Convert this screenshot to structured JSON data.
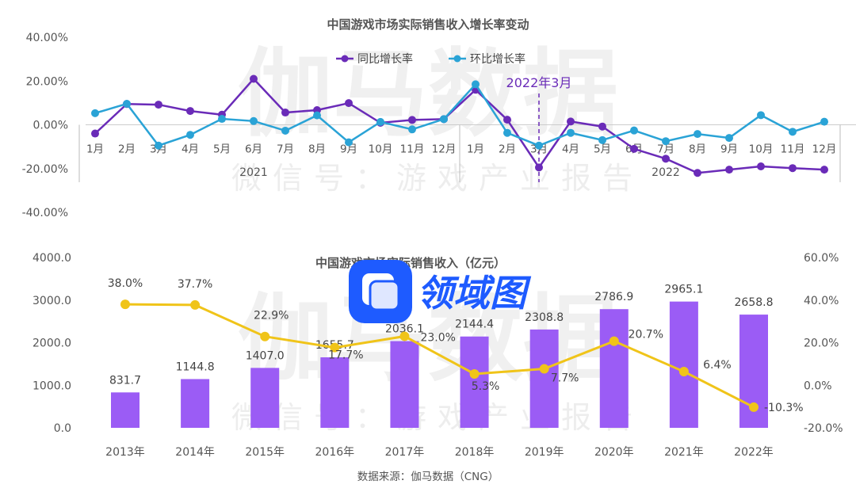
{
  "colors": {
    "yoy": "#6a2bb8",
    "mom": "#2aa3d6",
    "bar": "#9b5cf5",
    "growth_line": "#f0c419",
    "logo": "#1e5bff",
    "text": "#555555"
  },
  "watermark": {
    "main": "伽马数据",
    "sub": "微信号：游戏产业报告"
  },
  "logo": {
    "text": "领域图",
    "icon_name": "app-badge-icon"
  },
  "source": "数据来源：伽马数据（CNG）",
  "chart_data": [
    {
      "type": "line",
      "title": "中国游戏市场实际销售收入增长率变动",
      "ylim": [
        -40,
        40
      ],
      "yticks": [
        "40.00%",
        "20.00%",
        "0.00%",
        "-20.00%",
        "-40.00%"
      ],
      "ytick_values": [
        40,
        20,
        0,
        -20,
        -40
      ],
      "categories": [
        "1月",
        "2月",
        "3月",
        "4月",
        "5月",
        "6月",
        "7月",
        "8月",
        "9月",
        "10月",
        "11月",
        "12月",
        "1月",
        "2月",
        "3月",
        "4月",
        "5月",
        "6月",
        "7月",
        "8月",
        "9月",
        "10月",
        "11月",
        "12月"
      ],
      "year_labels": [
        "2021",
        "2022"
      ],
      "annotation": {
        "text": "2022年3月",
        "index": 14
      },
      "series": [
        {
          "name": "同比增长率",
          "values": [
            -4,
            9.5,
            9.2,
            6.3,
            4.6,
            21,
            5.6,
            6.7,
            9.9,
            0.9,
            2.2,
            2.6,
            16,
            2.3,
            -19.5,
            1.5,
            -0.8,
            -11,
            -15.5,
            -22,
            -20.5,
            -19,
            -19.8,
            -20.5
          ]
        },
        {
          "name": "环比增长率",
          "values": [
            5.3,
            9.6,
            -9.5,
            -4.6,
            2.7,
            1.7,
            -2.7,
            4.3,
            -8,
            1.3,
            -2.1,
            2.6,
            18.5,
            -3.7,
            -9.5,
            -3.7,
            -7,
            -2.6,
            -7.5,
            -4.2,
            -6,
            4.4,
            -3.2,
            1.4
          ]
        }
      ]
    },
    {
      "type": "bar",
      "title": "中国游戏市场实际销售收入（亿元）",
      "categories": [
        "2013年",
        "2014年",
        "2015年",
        "2016年",
        "2017年",
        "2018年",
        "2019年",
        "2020年",
        "2021年",
        "2022年"
      ],
      "ylim": [
        0,
        4000
      ],
      "yticks_left": [
        "4000.0",
        "3000.0",
        "2000.0",
        "1000.0",
        "0.0"
      ],
      "ytick_left_values": [
        4000,
        3000,
        2000,
        1000,
        0
      ],
      "ylim_right": [
        -20,
        60
      ],
      "yticks_right": [
        "60.0%",
        "40.0%",
        "20.0%",
        "0.0%",
        "-20.0%"
      ],
      "ytick_right_values": [
        60,
        40,
        20,
        0,
        -20
      ],
      "series": [
        {
          "name": "实际销售收入",
          "values": [
            831.7,
            1144.8,
            1407.0,
            1655.7,
            2036.1,
            2144.4,
            2308.8,
            2786.9,
            2965.1,
            2658.8
          ],
          "labels": [
            "831.7",
            "1144.8",
            "1407.0",
            "1655.7",
            "2036.1",
            "2144.4",
            "2308.8",
            "2786.9",
            "2965.1",
            "2658.8"
          ]
        },
        {
          "name": "增长率",
          "values": [
            38.0,
            37.7,
            22.9,
            17.7,
            23.0,
            5.3,
            7.7,
            20.7,
            6.4,
            -10.3
          ],
          "labels": [
            "38.0%",
            "37.7%",
            "22.9%",
            "17.7%",
            "23.0%",
            "5.3%",
            "7.7%",
            "20.7%",
            "6.4%",
            "-10.3%"
          ]
        }
      ]
    }
  ]
}
